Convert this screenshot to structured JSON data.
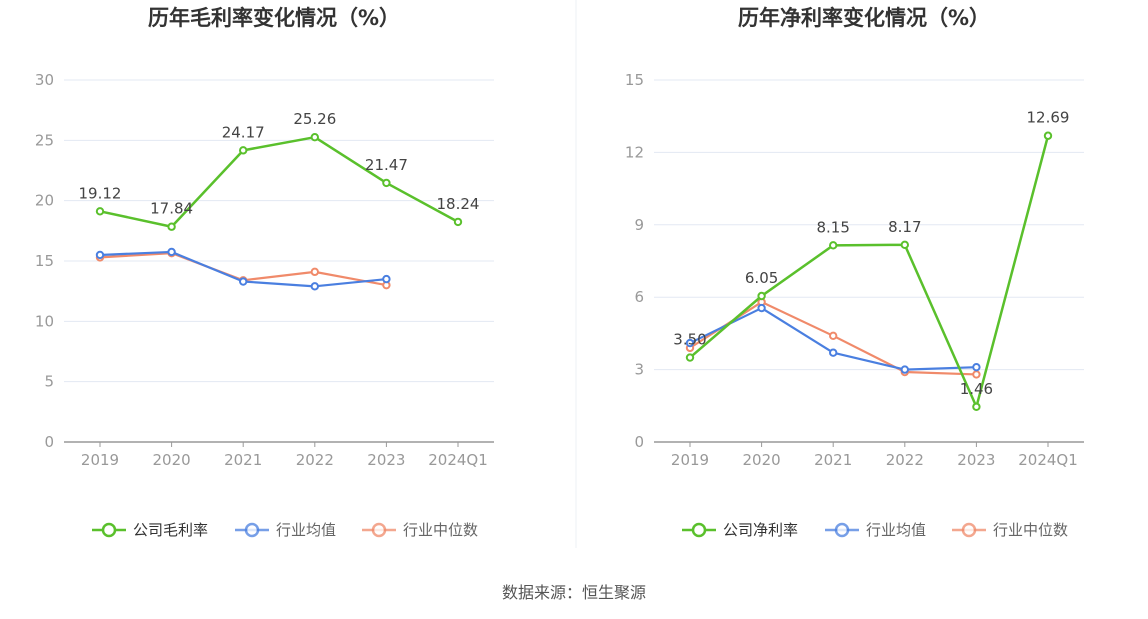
{
  "source_text": "数据来源：恒生聚源",
  "colors": {
    "company": "#5ac02c",
    "industry_avg": "#4a7fe0",
    "industry_median": "#f08a6a",
    "grid": "#e3e8f3",
    "axis": "#999999",
    "tick_text": "#999999",
    "label_text": "#444444"
  },
  "chart_data": [
    {
      "type": "line",
      "title": "历年毛利率变化情况（%）",
      "categories": [
        "2019",
        "2020",
        "2021",
        "2022",
        "2023",
        "2024Q1"
      ],
      "ylim": [
        0,
        30
      ],
      "yticks": [
        "0",
        "5",
        "10",
        "15",
        "20",
        "25",
        "30"
      ],
      "grid": true,
      "legend_position": "bottom",
      "series": [
        {
          "name": "公司毛利率",
          "values": [
            19.12,
            17.84,
            24.17,
            25.26,
            21.47,
            18.24
          ],
          "labels": [
            "19.12",
            "17.84",
            "24.17",
            "25.26",
            "21.47",
            "18.24"
          ]
        },
        {
          "name": "行业均值",
          "values": [
            15.5,
            15.75,
            13.3,
            12.9,
            13.5,
            null
          ]
        },
        {
          "name": "行业中位数",
          "values": [
            15.3,
            15.65,
            13.4,
            14.1,
            13.0,
            null
          ]
        }
      ]
    },
    {
      "type": "line",
      "title": "历年净利率变化情况（%）",
      "categories": [
        "2019",
        "2020",
        "2021",
        "2022",
        "2023",
        "2024Q1"
      ],
      "ylim": [
        0,
        15
      ],
      "yticks": [
        "0",
        "3",
        "6",
        "9",
        "12",
        "15"
      ],
      "grid": true,
      "legend_position": "bottom",
      "series": [
        {
          "name": "公司净利率",
          "values": [
            3.5,
            6.05,
            8.15,
            8.17,
            1.46,
            12.69
          ],
          "labels": [
            "3.50",
            "6.05",
            "8.15",
            "8.17",
            "1.46",
            "12.69"
          ]
        },
        {
          "name": "行业均值",
          "values": [
            4.1,
            5.55,
            3.7,
            3.0,
            3.1,
            null
          ]
        },
        {
          "name": "行业中位数",
          "values": [
            3.9,
            5.8,
            4.4,
            2.9,
            2.8,
            null
          ]
        }
      ]
    }
  ]
}
